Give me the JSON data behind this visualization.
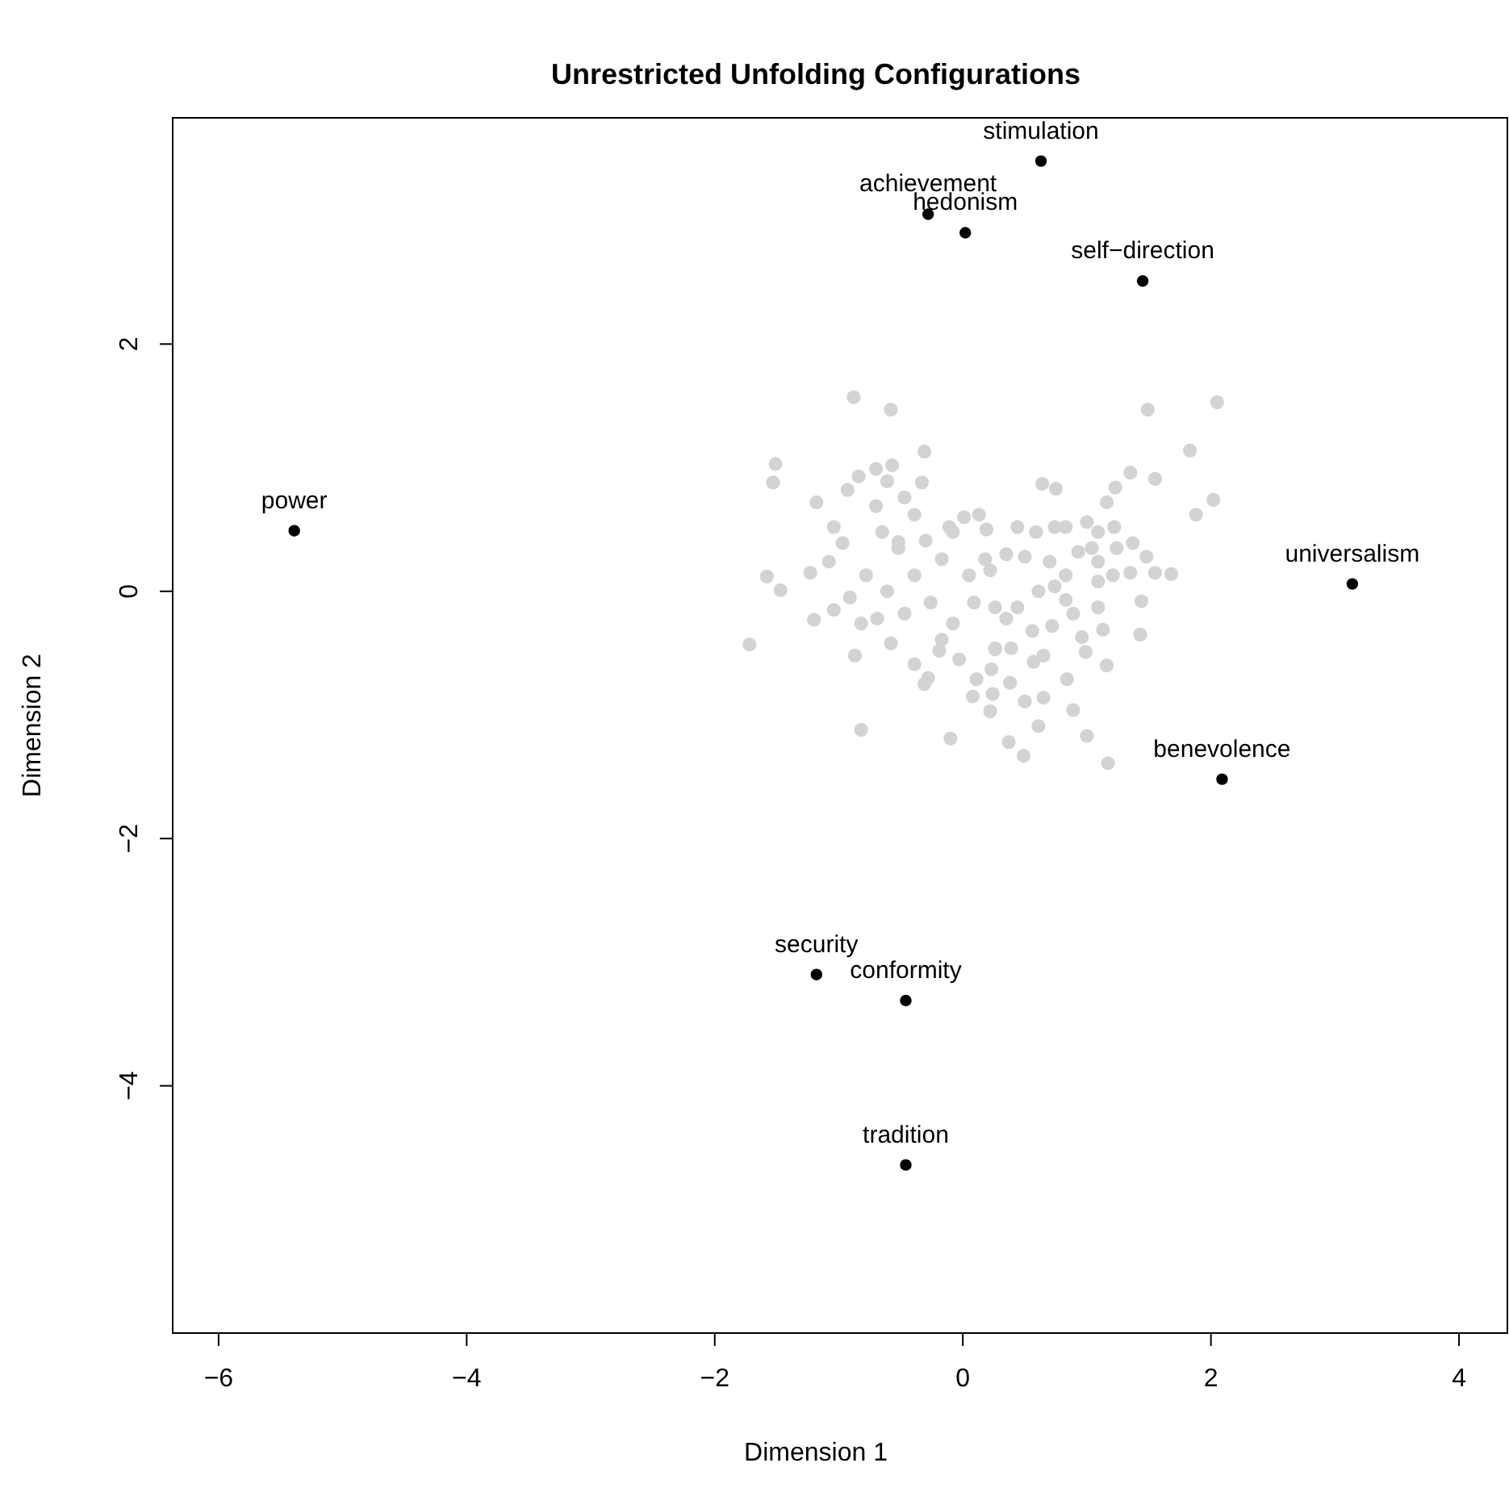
{
  "chart_data": {
    "type": "scatter",
    "title": "Unrestricted Unfolding Configurations",
    "xlabel": "Dimension 1",
    "ylabel": "Dimension 2",
    "xlim": [
      -6.37,
      4.39
    ],
    "ylim": [
      -6.0,
      3.83
    ],
    "xticks": [
      -6,
      -4,
      -2,
      0,
      2,
      4
    ],
    "yticks": [
      -4,
      -2,
      0,
      2
    ],
    "grid": false,
    "marker": "circle",
    "series": [
      {
        "color": "#d3d3d3",
        "x": [
          -0.88,
          -0.58,
          -1.51,
          -1.53,
          -0.31,
          -1.18,
          -0.84,
          -0.7,
          -0.57,
          -0.61,
          -0.93,
          -0.33,
          -0.47,
          -0.7,
          -0.39,
          -1.04,
          0.01,
          0.13,
          0.19,
          -0.11,
          -0.97,
          -0.65,
          -0.52,
          -1.23,
          -1.08,
          -1.58,
          -1.47,
          -1.72,
          -1.2,
          -1.04,
          -0.87,
          -0.82,
          -0.1,
          -0.58,
          -0.39,
          -0.28,
          -0.31,
          0.11,
          0.08,
          0.22,
          0.26,
          -0.03,
          -0.19,
          -0.78,
          -0.61,
          -0.39,
          -0.17,
          0.05,
          0.18,
          -0.91,
          -0.69,
          -0.47,
          -0.26,
          -0.08,
          0.09,
          -0.82,
          -0.17,
          -0.52,
          -0.08,
          -0.3,
          2.05,
          1.49,
          1.83,
          1.35,
          1.55,
          0.64,
          0.75,
          1.23,
          2.02,
          1.88,
          1.16,
          1.22,
          1.0,
          0.74,
          0.44,
          1.37,
          1.24,
          1.48,
          1.55,
          1.68,
          1.35,
          1.21,
          1.09,
          1.44,
          1.43,
          1.09,
          1.13,
          0.96,
          0.99,
          1.16,
          0.84,
          0.89,
          1.0,
          1.17,
          0.49,
          0.37,
          0.61,
          0.5,
          0.65,
          0.38,
          0.23,
          0.24,
          0.57,
          0.65,
          0.39,
          0.26,
          0.56,
          0.72,
          0.89,
          0.83,
          0.74,
          0.61,
          0.44,
          0.26,
          0.35,
          0.83,
          0.7,
          0.5,
          0.35,
          0.22,
          0.59,
          0.83,
          1.09,
          1.04,
          0.93,
          1.09
        ],
        "values": [
          1.57,
          1.47,
          1.03,
          0.88,
          1.13,
          0.72,
          0.93,
          0.99,
          1.02,
          0.89,
          0.82,
          0.88,
          0.76,
          0.69,
          0.62,
          0.52,
          0.6,
          0.62,
          0.5,
          0.52,
          0.39,
          0.48,
          0.4,
          0.15,
          0.24,
          0.12,
          0.01,
          -0.43,
          -0.23,
          -0.15,
          -0.52,
          -1.12,
          -1.19,
          -0.42,
          -0.59,
          -0.7,
          -0.75,
          -0.71,
          -0.85,
          -0.97,
          -0.47,
          -0.55,
          -0.48,
          0.13,
          0.0,
          0.13,
          0.26,
          0.13,
          0.26,
          -0.05,
          -0.22,
          -0.18,
          -0.09,
          -0.26,
          -0.09,
          -0.26,
          -0.39,
          0.35,
          0.48,
          0.41,
          1.53,
          1.47,
          1.14,
          0.96,
          0.91,
          0.87,
          0.83,
          0.84,
          0.74,
          0.62,
          0.72,
          0.52,
          0.56,
          0.52,
          0.52,
          0.39,
          0.35,
          0.28,
          0.15,
          0.14,
          0.15,
          0.13,
          0.08,
          -0.08,
          -0.35,
          -0.13,
          -0.31,
          -0.37,
          -0.49,
          -0.6,
          -0.71,
          -0.96,
          -1.17,
          -1.39,
          -1.33,
          -1.22,
          -1.09,
          -0.89,
          -0.86,
          -0.74,
          -0.63,
          -0.83,
          -0.57,
          -0.52,
          -0.46,
          -0.46,
          -0.32,
          -0.28,
          -0.18,
          -0.07,
          0.04,
          0.0,
          -0.13,
          -0.13,
          -0.22,
          0.13,
          0.24,
          0.28,
          0.3,
          0.17,
          0.48,
          0.52,
          0.48,
          0.35,
          0.32,
          0.24
        ]
      },
      {
        "color": "#000000",
        "x": [
          0.63,
          -0.28,
          0.02,
          1.45,
          -5.39,
          3.14,
          2.09,
          -1.18,
          -0.46,
          -0.46
        ],
        "values": [
          3.48,
          3.05,
          2.9,
          2.51,
          0.49,
          0.06,
          -1.52,
          -3.1,
          -3.31,
          -4.64
        ]
      }
    ],
    "annotations": [
      {
        "text": "stimulation",
        "x": 0.63,
        "y": 3.48
      },
      {
        "text": "achievement",
        "x": -0.28,
        "y": 3.05
      },
      {
        "text": "hedonism",
        "x": 0.02,
        "y": 2.9
      },
      {
        "text": "self−direction",
        "x": 1.45,
        "y": 2.51
      },
      {
        "text": "power",
        "x": -5.39,
        "y": 0.49
      },
      {
        "text": "universalism",
        "x": 3.14,
        "y": 0.06
      },
      {
        "text": "benevolence",
        "x": 2.09,
        "y": -1.52
      },
      {
        "text": "security",
        "x": -1.18,
        "y": -3.1
      },
      {
        "text": "conformity",
        "x": -0.46,
        "y": -3.31
      },
      {
        "text": "tradition",
        "x": -0.46,
        "y": -4.64
      }
    ]
  }
}
